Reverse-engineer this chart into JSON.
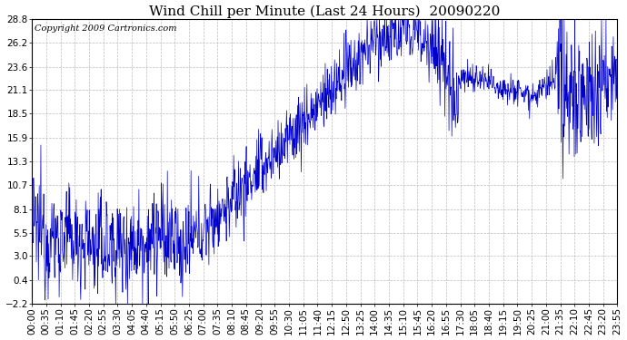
{
  "title": "Wind Chill per Minute (Last 24 Hours)  20090220",
  "copyright": "Copyright 2009 Cartronics.com",
  "yticks": [
    28.8,
    26.2,
    23.6,
    21.1,
    18.5,
    15.9,
    13.3,
    10.7,
    8.1,
    5.5,
    3.0,
    0.4,
    -2.2
  ],
  "ylim": [
    -2.2,
    28.8
  ],
  "line_color": "#0000CC",
  "background_color": "#ffffff",
  "grid_color": "#bbbbbb",
  "title_fontsize": 11,
  "copyright_fontsize": 7,
  "tick_fontsize": 7.5,
  "xtick_labels": [
    "00:00",
    "00:35",
    "01:10",
    "01:45",
    "02:20",
    "02:55",
    "03:30",
    "04:05",
    "04:40",
    "05:15",
    "05:50",
    "06:25",
    "07:00",
    "07:35",
    "08:10",
    "08:45",
    "09:20",
    "09:55",
    "10:30",
    "11:05",
    "11:40",
    "12:15",
    "12:50",
    "13:25",
    "14:00",
    "14:35",
    "15:10",
    "15:45",
    "16:20",
    "16:55",
    "17:30",
    "18:05",
    "18:40",
    "19:15",
    "19:50",
    "20:25",
    "21:00",
    "21:35",
    "22:10",
    "22:45",
    "23:20",
    "23:55"
  ]
}
